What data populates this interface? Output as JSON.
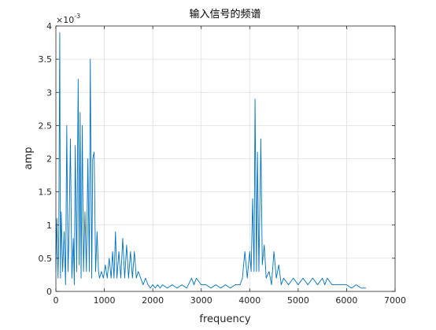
{
  "chart_data": {
    "type": "line",
    "title": "输入信号的频谱",
    "xlabel": "frequency",
    "ylabel": "amp",
    "xlim": [
      0,
      7000
    ],
    "ylim": [
      0,
      0.004
    ],
    "y_exponent_label": "×10",
    "y_exponent_power": "-3",
    "grid": true,
    "x_ticks": [
      0,
      1000,
      2000,
      3000,
      4000,
      5000,
      6000,
      7000
    ],
    "x_tick_labels": [
      "0",
      "1000",
      "2000",
      "3000",
      "4000",
      "5000",
      "6000",
      "7000"
    ],
    "y_ticks": [
      0,
      0.0005,
      0.001,
      0.0015,
      0.002,
      0.0025,
      0.003,
      0.0035,
      0.004
    ],
    "y_tick_labels": [
      "0",
      "0.5",
      "1",
      "1.5",
      "2",
      "2.5",
      "3",
      "3.5",
      "4"
    ],
    "line_color": "#0072BD",
    "series": [
      {
        "x": [
          0,
          20,
          45,
          60,
          80,
          95,
          110,
          140,
          170,
          200,
          225,
          250,
          270,
          300,
          330,
          360,
          380,
          400,
          430,
          460,
          480,
          500,
          520,
          545,
          570,
          600,
          630,
          660,
          690,
          710,
          740,
          760,
          790,
          820,
          850,
          880,
          900,
          940,
          980,
          1020,
          1060,
          1100,
          1140,
          1170,
          1200,
          1230,
          1260,
          1300,
          1340,
          1380,
          1420,
          1460,
          1500,
          1540,
          1580,
          1620,
          1660,
          1700,
          1750,
          1800,
          1850,
          1900,
          1950,
          2000,
          2050,
          2100,
          2150,
          2200,
          2300,
          2400,
          2500,
          2600,
          2700,
          2800,
          2850,
          2900,
          3000,
          3100,
          3200,
          3300,
          3400,
          3500,
          3600,
          3700,
          3800,
          3850,
          3900,
          3950,
          4000,
          4030,
          4060,
          4090,
          4110,
          4140,
          4160,
          4190,
          4230,
          4260,
          4300,
          4340,
          4400,
          4450,
          4500,
          4550,
          4600,
          4650,
          4700,
          4800,
          4900,
          5000,
          5100,
          5200,
          5300,
          5400,
          5500,
          5550,
          5600,
          5700,
          5800,
          5900,
          6000,
          6100,
          6200,
          6300,
          6400
        ],
        "y": [
          0.0003,
          0.0011,
          0.0002,
          0.0009,
          0.0039,
          0.0002,
          0.0012,
          0.0003,
          0.0009,
          0.0001,
          0.0025,
          0.0003,
          0.0008,
          0.0023,
          0.0002,
          0.0008,
          0.0001,
          0.0022,
          0.0003,
          0.0032,
          0.0004,
          0.0027,
          0.0002,
          0.0025,
          0.0003,
          0.0012,
          0.0003,
          0.002,
          0.0003,
          0.0035,
          0.0002,
          0.002,
          0.0021,
          0.0003,
          0.0009,
          0.0003,
          0.0002,
          0.0003,
          0.0002,
          0.0004,
          0.0002,
          0.0005,
          0.0002,
          0.0006,
          0.0002,
          0.0009,
          0.0002,
          0.0006,
          0.0002,
          0.0008,
          0.0002,
          0.0007,
          0.0002,
          0.0006,
          0.0002,
          0.0006,
          0.0002,
          0.0003,
          0.0002,
          0.0001,
          0.0002,
          0.0001,
          5e-05,
          0.0001,
          5e-05,
          0.0001,
          5e-05,
          0.0001,
          5e-05,
          0.0001,
          5e-05,
          0.0001,
          5e-05,
          0.0002,
          0.0001,
          0.0002,
          0.0001,
          0.0001,
          5e-05,
          0.0001,
          5e-05,
          0.0001,
          5e-05,
          0.0001,
          0.0001,
          0.0002,
          0.0006,
          0.0002,
          0.0006,
          0.0003,
          0.0014,
          0.0003,
          0.0029,
          0.0003,
          0.0021,
          0.0003,
          0.0023,
          0.0004,
          0.0007,
          0.0002,
          0.0003,
          0.0001,
          0.0006,
          0.0002,
          0.0004,
          0.0001,
          0.0002,
          0.0001,
          0.0002,
          0.0001,
          0.0002,
          0.0001,
          0.0002,
          0.0001,
          0.0002,
          0.0001,
          0.0002,
          0.0001,
          0.0001,
          0.0001,
          0.0001,
          5e-05,
          0.0001,
          5e-05,
          5e-05
        ]
      }
    ]
  }
}
